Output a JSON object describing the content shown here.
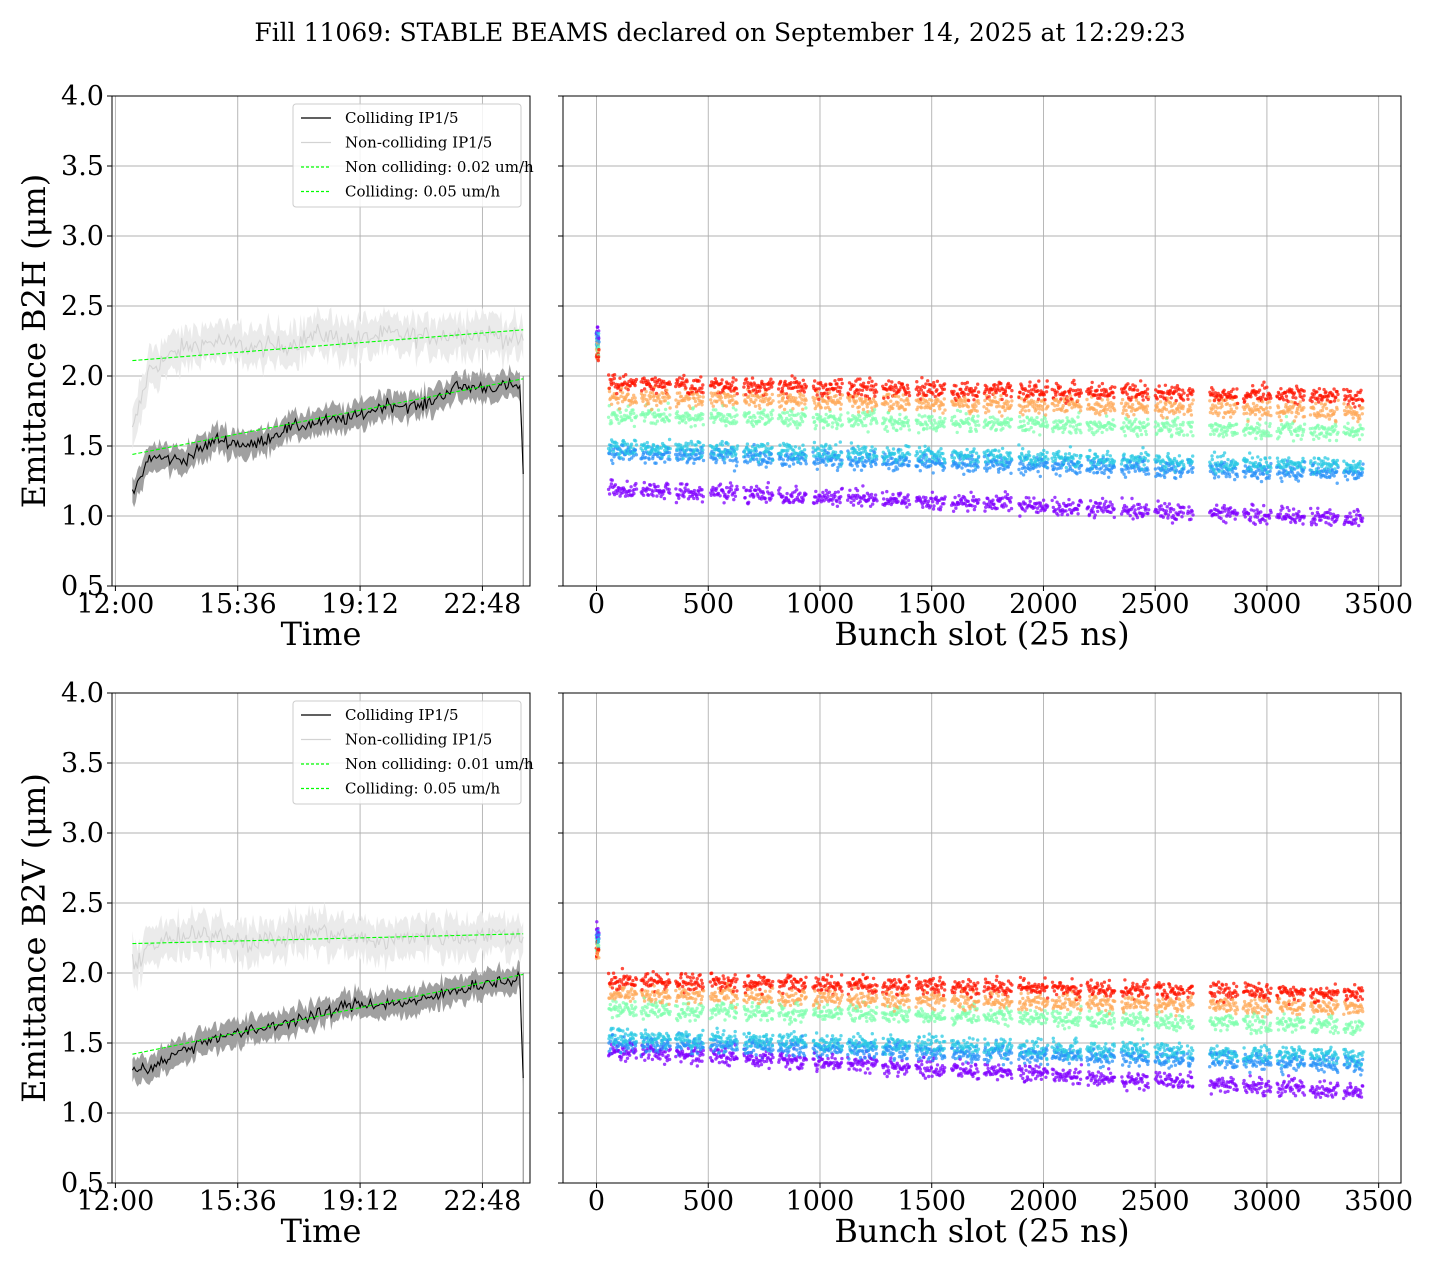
{
  "figure": {
    "title": "Fill 11069: STABLE BEAMS declared on September 14, 2025 at 12:29:23"
  },
  "chart_data": [
    {
      "id": "b2h-time",
      "type": "line",
      "xlabel": "Time",
      "ylabel": "Emittance B2H (μm)",
      "xticks": [
        "12:00",
        "15:36",
        "19:12",
        "22:48"
      ],
      "xtick_hours": [
        12.0,
        15.6,
        19.2,
        22.8
      ],
      "xlim_hours": [
        11.9,
        24.2
      ],
      "ylim": [
        0.5,
        4.0
      ],
      "yticks": [
        "0.5",
        "1.0",
        "1.5",
        "2.0",
        "2.5",
        "3.0",
        "3.5",
        "4.0"
      ],
      "grid": true,
      "legend_position": "top-right",
      "legend": [
        "Colliding IP1/5",
        "Non-colliding IP1/5",
        "Non colliding: 0.02 um/h",
        "Colliding: 0.05 um/h"
      ],
      "colors": {
        "colliding": "#000000",
        "non_colliding": "#d3d3d3",
        "fit": "#00ff00",
        "band_colliding": "#a0a0a0",
        "band_non_colliding": "#ebebeb"
      },
      "series": [
        {
          "name": "Colliding IP1/5",
          "x_hours": [
            12.5,
            13.0,
            14.0,
            15.0,
            16.0,
            17.0,
            18.0,
            19.0,
            20.0,
            21.0,
            22.0,
            23.0,
            23.9,
            24.0
          ],
          "y": [
            1.15,
            1.42,
            1.4,
            1.55,
            1.5,
            1.62,
            1.67,
            1.7,
            1.8,
            1.78,
            1.92,
            1.92,
            1.93,
            1.3
          ]
        },
        {
          "name": "Non-colliding IP1/5",
          "x_hours": [
            12.5,
            13.0,
            14.0,
            15.0,
            16.0,
            17.0,
            18.0,
            19.0,
            20.0,
            21.0,
            22.0,
            23.0,
            24.0
          ],
          "y": [
            1.6,
            2.05,
            2.2,
            2.25,
            2.2,
            2.22,
            2.3,
            2.25,
            2.3,
            2.28,
            2.3,
            2.3,
            2.25
          ]
        },
        {
          "name": "Non colliding: 0.02 um/h",
          "x_hours": [
            12.5,
            24.0
          ],
          "y": [
            2.11,
            2.33
          ]
        },
        {
          "name": "Colliding: 0.05 um/h",
          "x_hours": [
            12.5,
            24.0
          ],
          "y": [
            1.44,
            1.98
          ]
        }
      ]
    },
    {
      "id": "b2h-bunch",
      "type": "scatter",
      "xlabel": "Bunch slot (25 ns)",
      "xticks": [
        "0",
        "500",
        "1000",
        "1500",
        "2000",
        "2500",
        "3000",
        "3500"
      ],
      "xlim": [
        -150,
        3600
      ],
      "ylim": [
        0.5,
        4.0
      ],
      "grid": true,
      "colormap": "rainbow",
      "bunch_trains": [
        [
          0,
          10
        ],
        [
          55,
          180
        ],
        [
          200,
          330
        ],
        [
          355,
          480
        ],
        [
          510,
          630
        ],
        [
          660,
          790
        ],
        [
          815,
          940
        ],
        [
          970,
          1100
        ],
        [
          1125,
          1255
        ],
        [
          1280,
          1400
        ],
        [
          1430,
          1560
        ],
        [
          1590,
          1710
        ],
        [
          1735,
          1860
        ],
        [
          1890,
          2020
        ],
        [
          2040,
          2170
        ],
        [
          2195,
          2320
        ],
        [
          2350,
          2470
        ],
        [
          2500,
          2630
        ],
        [
          2645,
          2670
        ],
        [
          2745,
          2870
        ],
        [
          2895,
          3020
        ],
        [
          3045,
          3170
        ],
        [
          3195,
          3320
        ],
        [
          3345,
          3430
        ]
      ],
      "bands": {
        "red_start": 1.95,
        "red_end": 1.85,
        "cyan_start": 1.5,
        "cyan_end": 1.35,
        "purple_start": 1.2,
        "purple_end": 0.98
      }
    },
    {
      "id": "b2v-time",
      "type": "line",
      "xlabel": "Time",
      "ylabel": "Emittance B2V (μm)",
      "xticks": [
        "12:00",
        "15:36",
        "19:12",
        "22:48"
      ],
      "xtick_hours": [
        12.0,
        15.6,
        19.2,
        22.8
      ],
      "xlim_hours": [
        11.9,
        24.2
      ],
      "ylim": [
        0.5,
        4.0
      ],
      "yticks": [
        "0.5",
        "1.0",
        "1.5",
        "2.0",
        "2.5",
        "3.0",
        "3.5",
        "4.0"
      ],
      "grid": true,
      "legend_position": "top-right",
      "legend": [
        "Colliding IP1/5",
        "Non-colliding IP1/5",
        "Non colliding: 0.01 um/h",
        "Colliding: 0.05 um/h"
      ],
      "colors": {
        "colliding": "#000000",
        "non_colliding": "#d3d3d3",
        "fit": "#00ff00",
        "band_colliding": "#a0a0a0",
        "band_non_colliding": "#ebebeb"
      },
      "series": [
        {
          "name": "Colliding IP1/5",
          "x_hours": [
            12.5,
            13.0,
            14.0,
            15.0,
            16.0,
            17.0,
            18.0,
            19.0,
            20.0,
            21.0,
            22.0,
            23.0,
            23.9,
            24.0
          ],
          "y": [
            1.32,
            1.32,
            1.45,
            1.55,
            1.58,
            1.65,
            1.7,
            1.78,
            1.78,
            1.8,
            1.88,
            1.93,
            1.95,
            1.25
          ]
        },
        {
          "name": "Non-colliding IP1/5",
          "x_hours": [
            12.5,
            13.0,
            14.0,
            15.0,
            16.0,
            17.0,
            18.0,
            19.0,
            20.0,
            21.0,
            22.0,
            23.0,
            24.0
          ],
          "y": [
            2.05,
            2.2,
            2.25,
            2.28,
            2.22,
            2.25,
            2.3,
            2.25,
            2.22,
            2.28,
            2.25,
            2.28,
            2.25
          ]
        },
        {
          "name": "Non colliding: 0.01 um/h",
          "x_hours": [
            12.5,
            24.0
          ],
          "y": [
            2.21,
            2.28
          ]
        },
        {
          "name": "Colliding: 0.05 um/h",
          "x_hours": [
            12.5,
            24.0
          ],
          "y": [
            1.42,
            1.99
          ]
        }
      ]
    },
    {
      "id": "b2v-bunch",
      "type": "scatter",
      "xlabel": "Bunch slot (25 ns)",
      "xticks": [
        "0",
        "500",
        "1000",
        "1500",
        "2000",
        "2500",
        "3000",
        "3500"
      ],
      "xlim": [
        -150,
        3600
      ],
      "ylim": [
        0.5,
        4.0
      ],
      "grid": true,
      "colormap": "rainbow",
      "bunch_trains": [
        [
          0,
          10
        ],
        [
          55,
          180
        ],
        [
          200,
          330
        ],
        [
          355,
          480
        ],
        [
          510,
          630
        ],
        [
          660,
          790
        ],
        [
          815,
          940
        ],
        [
          970,
          1100
        ],
        [
          1125,
          1255
        ],
        [
          1280,
          1400
        ],
        [
          1430,
          1560
        ],
        [
          1590,
          1710
        ],
        [
          1735,
          1860
        ],
        [
          1890,
          2020
        ],
        [
          2040,
          2170
        ],
        [
          2195,
          2320
        ],
        [
          2350,
          2470
        ],
        [
          2500,
          2630
        ],
        [
          2645,
          2670
        ],
        [
          2745,
          2870
        ],
        [
          2895,
          3020
        ],
        [
          3045,
          3170
        ],
        [
          3195,
          3320
        ],
        [
          3345,
          3430
        ]
      ],
      "bands": {
        "red_start": 1.95,
        "red_end": 1.85,
        "cyan_start": 1.55,
        "cyan_end": 1.4,
        "purple_start": 1.45,
        "purple_end": 1.15
      }
    }
  ]
}
